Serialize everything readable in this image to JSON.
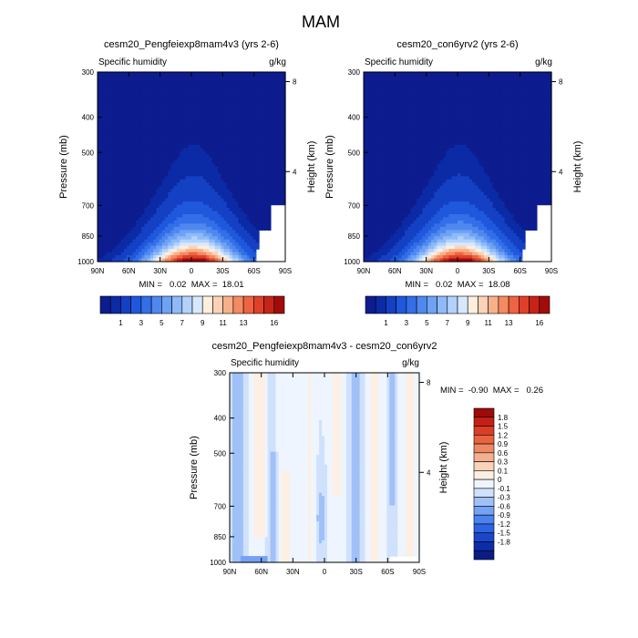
{
  "figure": {
    "title": "MAM"
  },
  "colors": {
    "abs_fills": [
      "#0d1c8e",
      "#0b2aa6",
      "#1440c4",
      "#1f58dc",
      "#336fe8",
      "#4f88ef",
      "#6ea2f5",
      "#8fbaf8",
      "#b3d2fb",
      "#d7e8fd",
      "#fdeedd",
      "#fbd2b6",
      "#f8b08a",
      "#f48a61",
      "#ee6442",
      "#e0402a",
      "#c82317",
      "#a20b0b"
    ],
    "diff_fills": [
      "#0b1d84",
      "#0f2ca8",
      "#1b46cc",
      "#2c63e3",
      "#4a82f0",
      "#75a2f5",
      "#a1c0f8",
      "#cfe1fc",
      "#eef5ff",
      "#fdefe3",
      "#f9d2b8",
      "#f4b08e",
      "#ee8965",
      "#e8633e",
      "#dc3d25",
      "#c52016",
      "#9c0c0b"
    ]
  },
  "chart_data": [
    {
      "type": "contour",
      "title": "cesm20_Pengfeiexp8mam4v3 (yrs 2-6)",
      "left_label": "Specific humidity",
      "right_label": "g/kg",
      "ylabel": "Pressure (mb)",
      "ylabel_right": "Height (km)",
      "x_ticks": [
        "90N",
        "60N",
        "30N",
        "0",
        "30S",
        "60S",
        "90S"
      ],
      "x_values": [
        90,
        60,
        30,
        0,
        -30,
        -60,
        -90
      ],
      "y_ticks": [
        "300",
        "400",
        "500",
        "700",
        "850",
        "1000"
      ],
      "y_values": [
        300,
        400,
        500,
        700,
        850,
        1000
      ],
      "ylim": [
        1000,
        300
      ],
      "height_ticks": [
        "8",
        "4"
      ],
      "height_values_km": [
        8,
        4
      ],
      "min_max_text": "MIN =   0.02  MAX =  18.01",
      "min": 0.02,
      "max": 18.01,
      "contour_levels": [
        0.5,
        1,
        2,
        3,
        4,
        5,
        6,
        7,
        8,
        9,
        10,
        11,
        12,
        13,
        14,
        15,
        16
      ],
      "colorbar_labels": [
        "1",
        "3",
        "5",
        "7",
        "9",
        "11",
        "13",
        "16"
      ],
      "colorbar_label_levels": [
        1,
        3,
        5,
        7,
        9,
        11,
        13,
        16
      ]
    },
    {
      "type": "contour",
      "title": "cesm20_con6yrv2 (yrs 2-6)",
      "left_label": "Specific humidity",
      "right_label": "g/kg",
      "ylabel": "Pressure (mb)",
      "ylabel_right": "Height (km)",
      "x_ticks": [
        "90N",
        "60N",
        "30N",
        "0",
        "30S",
        "60S",
        "90S"
      ],
      "x_values": [
        90,
        60,
        30,
        0,
        -30,
        -60,
        -90
      ],
      "y_ticks": [
        "300",
        "400",
        "500",
        "700",
        "850",
        "1000"
      ],
      "y_values": [
        300,
        400,
        500,
        700,
        850,
        1000
      ],
      "ylim": [
        1000,
        300
      ],
      "height_ticks": [
        "8",
        "4"
      ],
      "height_values_km": [
        8,
        4
      ],
      "min_max_text": "MIN =   0.02  MAX =  18.08",
      "min": 0.02,
      "max": 18.08,
      "contour_levels": [
        0.5,
        1,
        2,
        3,
        4,
        5,
        6,
        7,
        8,
        9,
        10,
        11,
        12,
        13,
        14,
        15,
        16
      ],
      "colorbar_labels": [
        "1",
        "3",
        "5",
        "7",
        "9",
        "11",
        "13",
        "16"
      ],
      "colorbar_label_levels": [
        1,
        3,
        5,
        7,
        9,
        11,
        13,
        16
      ]
    },
    {
      "type": "contour",
      "title": "cesm20_Pengfeiexp8mam4v3 - cesm20_con6yrv2",
      "left_label": "Specific humidity",
      "right_label": "g/kg",
      "ylabel": "Pressure (mb)",
      "ylabel_right": "Height (km)",
      "x_ticks": [
        "90N",
        "60N",
        "30N",
        "0",
        "30S",
        "60S",
        "90S"
      ],
      "x_values": [
        90,
        60,
        30,
        0,
        -30,
        -60,
        -90
      ],
      "y_ticks": [
        "300",
        "400",
        "500",
        "700",
        "850",
        "1000"
      ],
      "y_values": [
        300,
        400,
        500,
        700,
        850,
        1000
      ],
      "ylim": [
        1000,
        300
      ],
      "height_ticks": [
        "8",
        "4"
      ],
      "height_values_km": [
        8,
        4
      ],
      "min_max_text": "MIN =  -0.90  MAX =   0.26",
      "min": -0.9,
      "max": 0.26,
      "contour_levels": [
        -1.8,
        -1.5,
        -1.2,
        -0.9,
        -0.6,
        -0.3,
        -0.1,
        0,
        0.1,
        0.3,
        0.6,
        0.9,
        1.2,
        1.5,
        1.8
      ],
      "colorbar_labels": [
        "1.8",
        "1.5",
        "1.2",
        "0.9",
        "0.6",
        "0.3",
        "0.1",
        "0",
        "-0.1",
        "-0.3",
        "-0.6",
        "-0.9",
        "-1.2",
        "-1.5",
        "-1.8"
      ]
    }
  ]
}
